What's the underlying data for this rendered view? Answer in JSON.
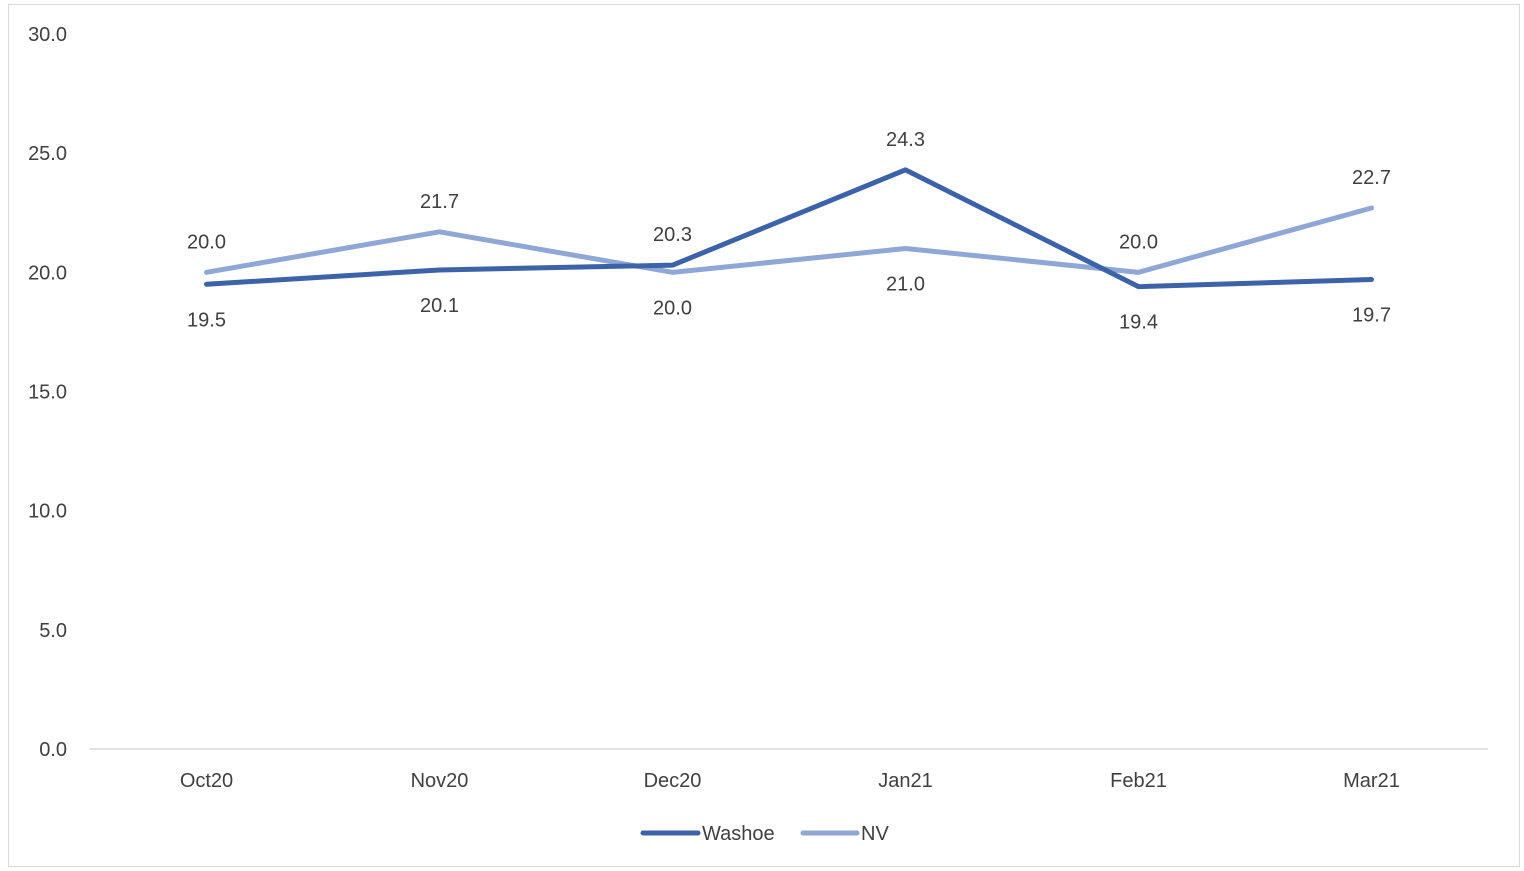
{
  "chart_data": {
    "type": "line",
    "title": "",
    "xlabel": "",
    "ylabel": "",
    "categories": [
      "Oct20",
      "Nov20",
      "Dec20",
      "Jan21",
      "Feb21",
      "Mar21"
    ],
    "ylim": [
      0,
      30
    ],
    "yticks": [
      "0.0",
      "5.0",
      "10.0",
      "15.0",
      "20.0",
      "25.0",
      "30.0"
    ],
    "grid": false,
    "legend_position": "bottom",
    "series": [
      {
        "name": "Washoe",
        "color": "#3c62a8",
        "values": [
          19.5,
          20.1,
          20.3,
          24.3,
          19.4,
          19.7
        ],
        "labels": [
          "19.5",
          "20.1",
          "20.3",
          "24.3",
          "19.4",
          "19.7"
        ],
        "label_side": [
          "below",
          "below",
          "above",
          "above",
          "below",
          "below"
        ]
      },
      {
        "name": "NV",
        "color": "#8fa7d6",
        "values": [
          20.0,
          21.7,
          20.0,
          21.0,
          20.0,
          22.7
        ],
        "labels": [
          "20.0",
          "21.7",
          "20.0",
          "21.0",
          "20.0",
          "22.7"
        ],
        "label_side": [
          "above",
          "above",
          "below",
          "below",
          "above",
          "above"
        ]
      }
    ]
  }
}
